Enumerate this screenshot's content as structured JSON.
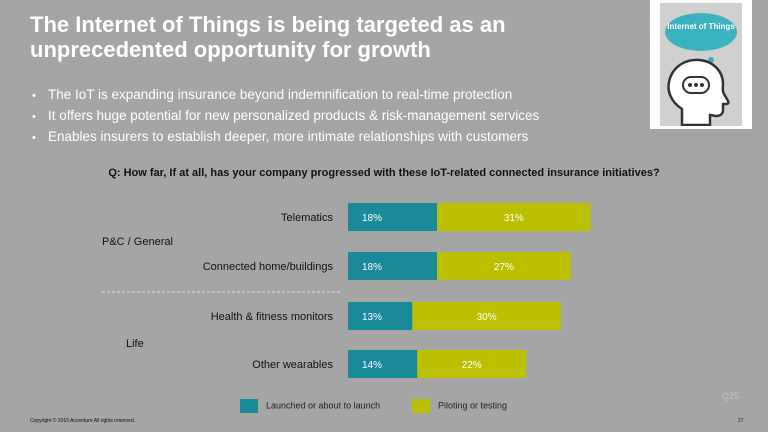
{
  "slide": {
    "title": "The Internet of Things is being targeted as an unprecedented opportunity for growth",
    "bullets": [
      "The IoT is expanding insurance beyond indemnification to real-time protection",
      "It offers huge potential for new personalized products & risk-management services",
      "Enables insurers to establish deeper, more intimate relationships with customers"
    ],
    "bullet_glyph": "•",
    "icon_bubble_text": "Internet of Things",
    "question": "Q: How far, If at all, has your company progressed with these IoT-related connected insurance initiatives?",
    "question_code": "Q25",
    "copyright": "Copyright © 2015 Accenture All rights reserved.",
    "page_number": "27"
  },
  "colors": {
    "background": "#a5a5a5",
    "launched": "#1a8a99",
    "piloting": "#bcc000",
    "bubble": "#3ab3bf"
  },
  "chart_data": {
    "type": "bar",
    "orientation": "horizontal",
    "stacked": true,
    "title": "",
    "categories": [
      "Telematics",
      "Connected home/buildings",
      "Health & fitness monitors",
      "Other wearables"
    ],
    "groups": [
      {
        "name": "P&C / General",
        "categories": [
          "Telematics",
          "Connected home/buildings"
        ]
      },
      {
        "name": "Life",
        "categories": [
          "Health & fitness monitors",
          "Other wearables"
        ]
      }
    ],
    "series": [
      {
        "name": "Launched or about to launch",
        "values": [
          18,
          18,
          13,
          14
        ],
        "labels": [
          "18%",
          "18%",
          "13%",
          "14%"
        ]
      },
      {
        "name": "Piloting or testing",
        "values": [
          31,
          27,
          30,
          22
        ],
        "labels": [
          "31%",
          "27%",
          "30%",
          "22%"
        ]
      }
    ],
    "xlim": [
      0,
      100
    ],
    "grid": false,
    "legend_position": "bottom"
  }
}
